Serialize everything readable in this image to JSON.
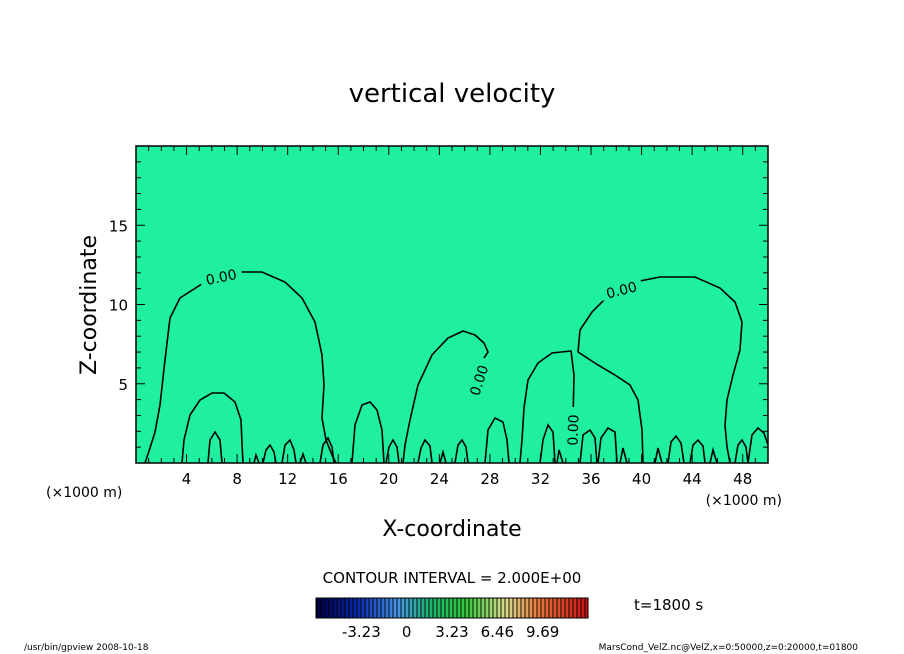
{
  "chart_data": {
    "type": "contour",
    "title": "vertical velocity",
    "xlabel": "X-coordinate",
    "ylabel": "Z-coordinate",
    "x_unit": "(×1000 m)",
    "y_unit": "(×1000 m)",
    "xlim": [
      0,
      50
    ],
    "ylim": [
      0,
      20
    ],
    "xticks": [
      4,
      8,
      12,
      16,
      20,
      24,
      28,
      32,
      36,
      40,
      44,
      48
    ],
    "yticks": [
      5,
      10,
      15
    ],
    "contour_level": "0.00",
    "contour_interval": "CONTOUR INTERVAL = 2.000E+00",
    "colorbar_ticks": [
      "-3.23",
      "0",
      "3.23",
      "6.46",
      "9.69"
    ],
    "colorbar_range": [
      -6.46,
      12.92
    ],
    "time_label": "t=1800 s",
    "colors": {
      "background_field": "#1ef0a0",
      "contour": "#000000"
    }
  },
  "footer": {
    "left": "/usr/bin/gpview   2008-10-18",
    "right": "MarsCond_VelZ.nc@VelZ,x=0:50000,z=0:20000,t=01800"
  }
}
